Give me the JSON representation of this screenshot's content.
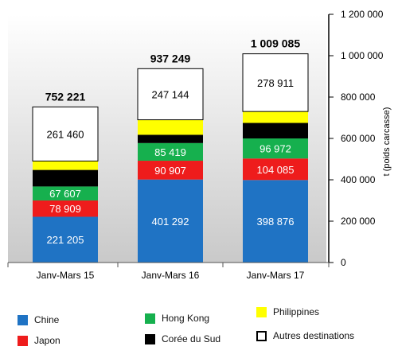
{
  "chart_data": {
    "type": "bar",
    "stacked": true,
    "categories": [
      "Janv-Mars 15",
      "Janv-Mars 16",
      "Janv-Mars 17"
    ],
    "totals": [
      "752 221",
      "937 249",
      "1 009 085"
    ],
    "ylabel": "t (poids carcasse)",
    "ylim": [
      0,
      1200000
    ],
    "yticks": [
      0,
      200000,
      400000,
      600000,
      800000,
      1000000,
      1200000
    ],
    "ytick_labels": [
      "0",
      "200 000",
      "400 000",
      "600 000",
      "800 000",
      "1 000 000",
      "1 200 000"
    ],
    "y_axis_side": "right",
    "background": "gradient-grey",
    "series": [
      {
        "name": "Chine",
        "color": "#1f73c4",
        "values": [
          221205,
          401292,
          398876
        ],
        "labels": [
          "221 205",
          "401 292",
          "398 876"
        ]
      },
      {
        "name": "Japon",
        "color": "#ee1c1c",
        "values": [
          78909,
          90907,
          104085
        ],
        "labels": [
          "78 909",
          "90 907",
          "104 085"
        ]
      },
      {
        "name": "Hong Kong",
        "color": "#16b04e",
        "values": [
          67607,
          85419,
          96972
        ],
        "labels": [
          "67 607",
          "85 419",
          "96 972"
        ]
      },
      {
        "name": "Corée du Sud",
        "color": "#000000",
        "values": [
          80000,
          40000,
          75000
        ],
        "labels": [
          "",
          "",
          ""
        ]
      },
      {
        "name": "Philippines",
        "color": "#ffff00",
        "values": [
          43040,
          72487,
          55241
        ],
        "labels": [
          "",
          "",
          ""
        ]
      },
      {
        "name": "Autres destinations",
        "color": "#ffffff",
        "values": [
          261460,
          247144,
          278911
        ],
        "labels": [
          "261 460",
          "247 144",
          "278 911"
        ]
      }
    ],
    "legend_position": "bottom"
  }
}
